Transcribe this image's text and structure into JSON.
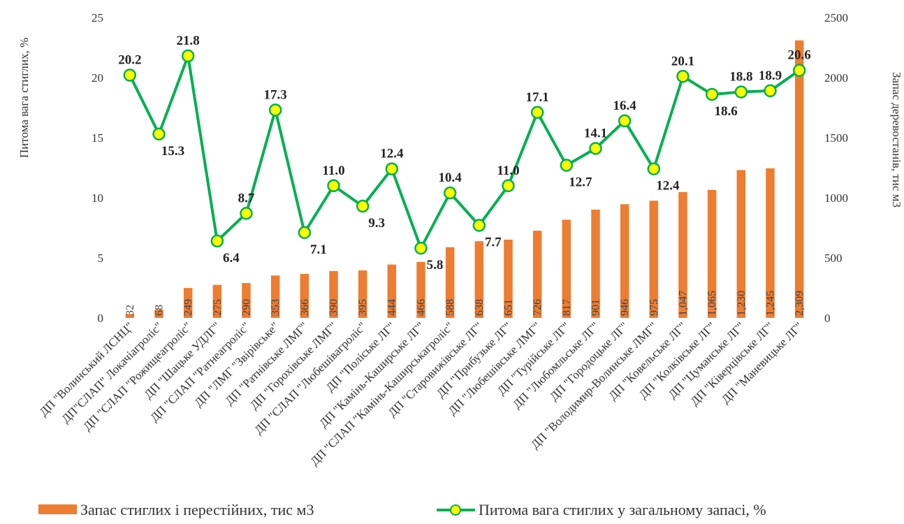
{
  "chart_data": {
    "type": "bar-line",
    "y_label": "Питома вага стиглих, %",
    "y2_label": "Запас деревостанів, тис м3",
    "categories": [
      "ДП \"Волинський ЛСНЦ\"",
      "ДП\"СЛАП\" Локачіагроліс\"",
      "ДП \"СЛАП \"Рожищеагроліс\"",
      "ДП \"Шацьке УДЛГ\"",
      "ДП \"СЛАП \"Ратнеагроліс\"",
      "ДП \"ЛМГ \"Звірівське\"",
      "ДП \"Ратнівське ЛМГ\"",
      "ДП \"Горохівське ЛМГ\"",
      "ДП \"СЛАП \"Любешівагроліс\"",
      "ДП \"Поліське ЛГ\"",
      "ДП \"Камінь-Каширське ЛГ\"",
      "ДП \"СЛАП \"Камінь-Каширськагроліс\"",
      "ДП \"Старовижівське ЛГ\"",
      "ДП \"Прибузьке ЛГ\"",
      "ДП \"Любешівське ЛМГ\"",
      "ДП \"Турійське ЛГ\"",
      "ДП \"Любомльське ЛГ\"",
      "ДП \"Городоцьке ЛГ\"",
      "ДП \"Володимир-Волинське ЛМГ\"",
      "ДП \"Ковельське ЛГ\"",
      "ДП \"Колківське ЛГ\"",
      "ДП \"Цуманське ЛГ\"",
      "ДП \"Ківерцівське ЛГ\"",
      "ДП \"Маневицьке ЛГ\""
    ],
    "series": [
      {
        "name": "Запас стиглих і перестійних, тис м3",
        "color": "#ed7d31",
        "axis": "y2",
        "kind": "bar",
        "values": [
          32,
          68,
          249,
          275,
          290,
          353,
          366,
          390,
          395,
          444,
          466,
          588,
          638,
          651,
          726,
          817,
          901,
          946,
          975,
          1047,
          1065,
          1230,
          1245,
          2309
        ],
        "value_labels": [
          "32",
          "68",
          "249",
          "275",
          "290",
          "353",
          "366",
          "390",
          "395",
          "444",
          "466",
          "588",
          "638",
          "651",
          "726",
          "817",
          "901",
          "946",
          "975",
          "1,047",
          "1,065",
          "1,230",
          "1,245",
          "2,309"
        ]
      },
      {
        "name": "Питома вага стиглих у загальному запасі, %",
        "color": "#00b050",
        "marker_color": "#ffff00",
        "axis": "y",
        "kind": "line",
        "values": [
          20.2,
          15.3,
          21.8,
          6.4,
          8.7,
          17.3,
          7.1,
          11.0,
          9.3,
          12.4,
          5.8,
          10.4,
          7.7,
          11.0,
          17.1,
          12.7,
          14.1,
          16.4,
          12.4,
          20.1,
          18.6,
          18.8,
          18.9,
          20.6
        ],
        "value_labels": [
          "20.2",
          "15.3",
          "21.8",
          "6.4",
          "8.7",
          "17.3",
          "7.1",
          "11.0",
          "9.3",
          "12.4",
          "5.8",
          "10.4",
          "7.7",
          "11.0",
          "17.1",
          "12.7",
          "14.1",
          "16.4",
          "12.4",
          "20.1",
          "18.6",
          "18.8",
          "18.9",
          "20.6"
        ]
      }
    ],
    "ylim": [
      0,
      25
    ],
    "yticks": [
      0,
      5,
      10,
      15,
      20,
      25
    ],
    "y2lim": [
      0,
      2500
    ],
    "y2ticks": [
      0,
      500,
      1000,
      1500,
      2000,
      2500
    ],
    "legend": "bottom"
  }
}
